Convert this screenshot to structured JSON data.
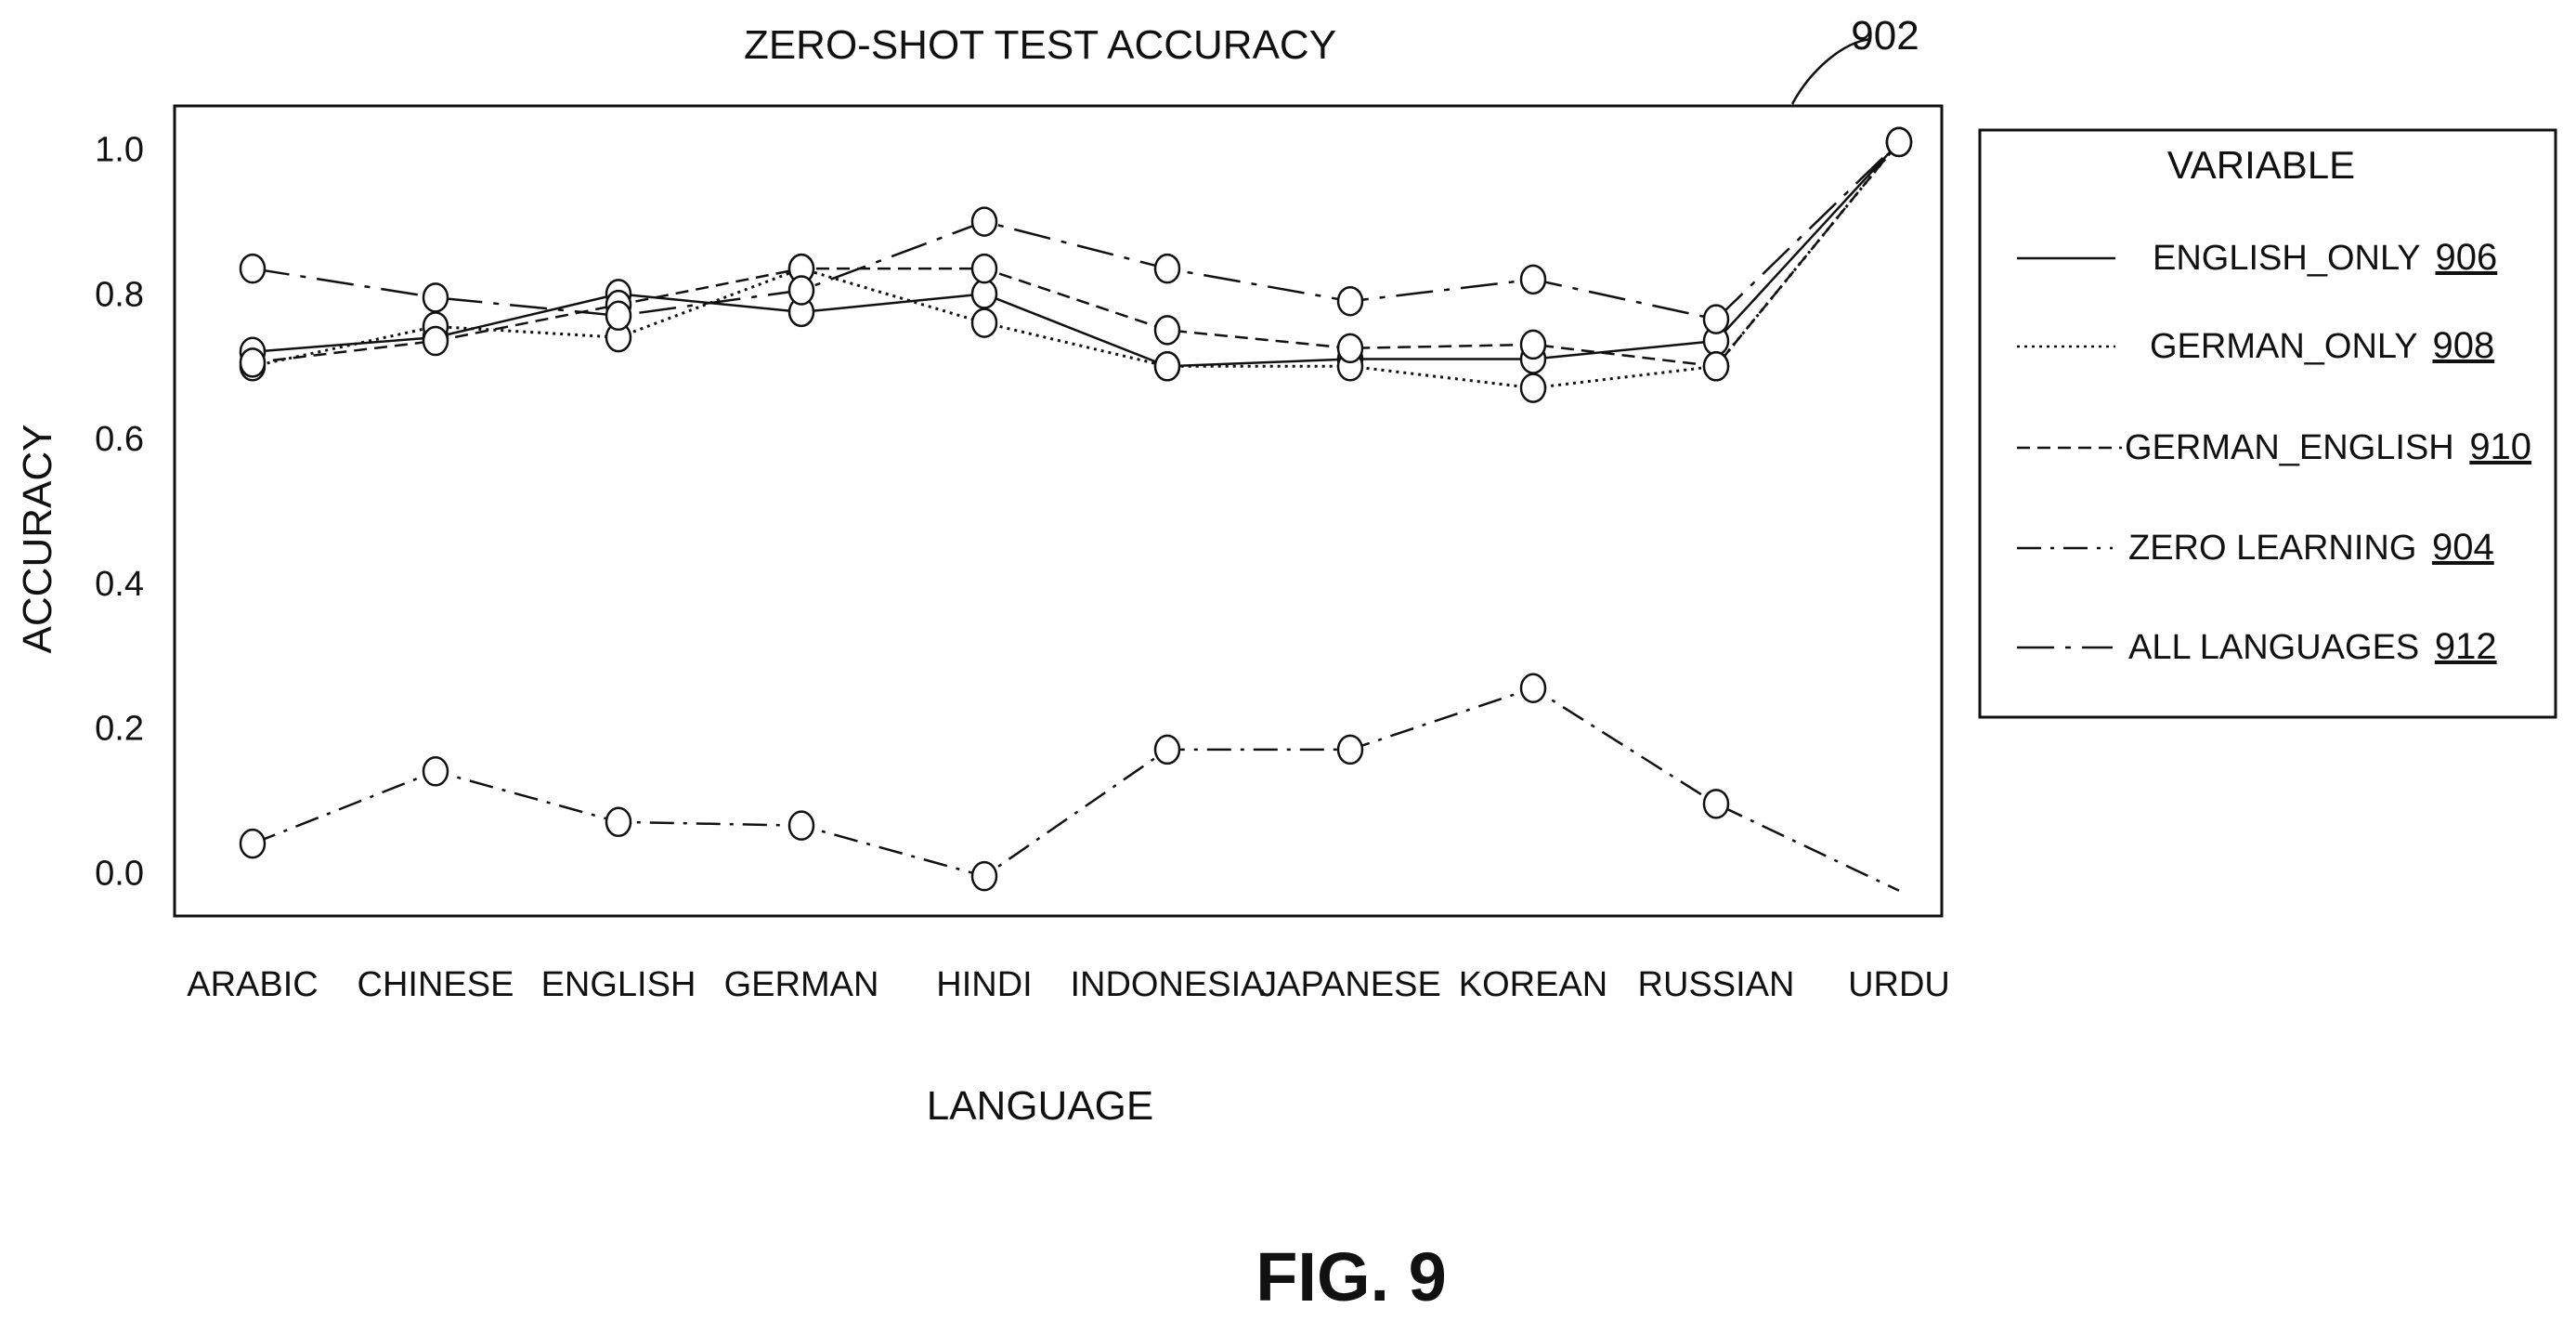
{
  "chart_data": {
    "type": "line",
    "title": "ZERO-SHOT TEST ACCURACY",
    "xlabel": "LANGUAGE",
    "ylabel": "ACCURACY",
    "figure_ref": "902",
    "categories": [
      "ARABIC",
      "CHINESE",
      "ENGLISH",
      "GERMAN",
      "HINDI",
      "INDONESIA",
      "JAPANESE",
      "KOREAN",
      "RUSSIAN",
      "URDU"
    ],
    "yticks": [
      "0.0",
      "0.2",
      "0.4",
      "0.6",
      "0.8",
      "1.0"
    ],
    "ylim": [
      -0.06,
      1.06
    ],
    "grid": false,
    "legend": {
      "title": "VARIABLE",
      "position": "right"
    },
    "series": [
      {
        "name": "ENGLISH_ONLY",
        "ref": "906",
        "dash": "solid",
        "values": [
          0.72,
          0.74,
          0.8,
          0.775,
          0.8,
          0.7,
          0.71,
          0.71,
          0.735,
          1.01
        ]
      },
      {
        "name": "GERMAN_ONLY",
        "ref": "908",
        "dash": "dotted",
        "values": [
          0.7,
          0.755,
          0.74,
          0.835,
          0.76,
          0.7,
          0.7,
          0.67,
          0.7,
          1.01
        ]
      },
      {
        "name": "GERMAN_ENGLISH",
        "ref": "910",
        "dash": "dashed",
        "values": [
          0.705,
          0.735,
          0.785,
          0.835,
          0.835,
          0.75,
          0.725,
          0.73,
          0.7,
          1.01
        ]
      },
      {
        "name": "ZERO LEARNING",
        "ref": "904",
        "dash": "dashdot",
        "values": [
          0.04,
          0.14,
          0.07,
          0.065,
          -0.005,
          0.17,
          0.17,
          0.255,
          0.095,
          -0.025
        ]
      },
      {
        "name": "ALL LANGUAGES",
        "ref": "912",
        "dash": "dashdotlong",
        "values": [
          0.835,
          0.795,
          0.77,
          0.805,
          0.9,
          0.835,
          0.79,
          0.82,
          0.765,
          1.01
        ]
      }
    ],
    "figure_label": "FIG. 9"
  }
}
